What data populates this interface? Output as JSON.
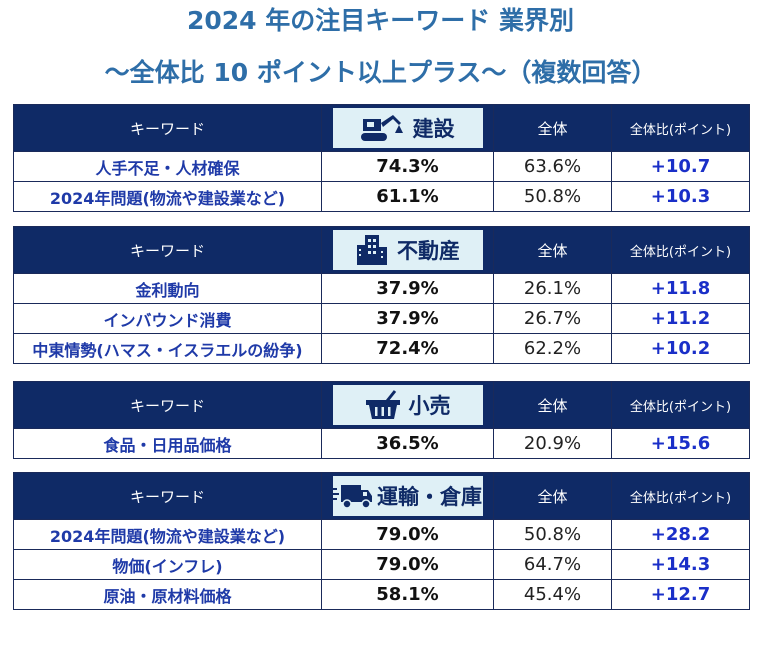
{
  "title_line1": "2024 年の注目キーワード  業界別",
  "title_line2": "～全体比 10 ポイント以上プラス～（複数回答）",
  "header": {
    "keyword": "キーワード",
    "overall": "全体",
    "diff": "全体比(ポイント)"
  },
  "sections": [
    {
      "industry": "建設",
      "icon": "excavator-icon",
      "rows": [
        {
          "keyword": "人手不足・人材確保",
          "pct": "74.3%",
          "overall": "63.6%",
          "diff": "+10.7"
        },
        {
          "keyword": "2024年問題(物流や建設業など)",
          "pct": "61.1%",
          "overall": "50.8%",
          "diff": "+10.3"
        }
      ]
    },
    {
      "industry": "不動産",
      "icon": "building-icon",
      "rows": [
        {
          "keyword": "金利動向",
          "pct": "37.9%",
          "overall": "26.1%",
          "diff": "+11.8"
        },
        {
          "keyword": "インバウンド消費",
          "pct": "37.9%",
          "overall": "26.7%",
          "diff": "+11.2"
        },
        {
          "keyword": "中東情勢(ハマス・イスラエルの紛争)",
          "pct": "72.4%",
          "overall": "62.2%",
          "diff": "+10.2"
        }
      ]
    },
    {
      "industry": "小売",
      "icon": "shopping-basket-icon",
      "rows": [
        {
          "keyword": "食品・日用品価格",
          "pct": "36.5%",
          "overall": "20.9%",
          "diff": "+15.6"
        }
      ]
    },
    {
      "industry": "運輸・倉庫",
      "icon": "truck-icon",
      "rows": [
        {
          "keyword": "2024年問題(物流や建設業など)",
          "pct": "79.0%",
          "overall": "50.8%",
          "diff": "+28.2"
        },
        {
          "keyword": "物価(インフレ)",
          "pct": "79.0%",
          "overall": "64.7%",
          "diff": "+14.3"
        },
        {
          "keyword": "原油・原材料価格",
          "pct": "58.1%",
          "overall": "45.4%",
          "diff": "+12.7"
        }
      ]
    }
  ],
  "colors": {
    "title": "#2e6ea8",
    "header_bg": "#0f2a66",
    "industry_bg": "#dff0f6",
    "keyword_text": "#1f3aa8",
    "diff_text": "#1a2fc8"
  }
}
